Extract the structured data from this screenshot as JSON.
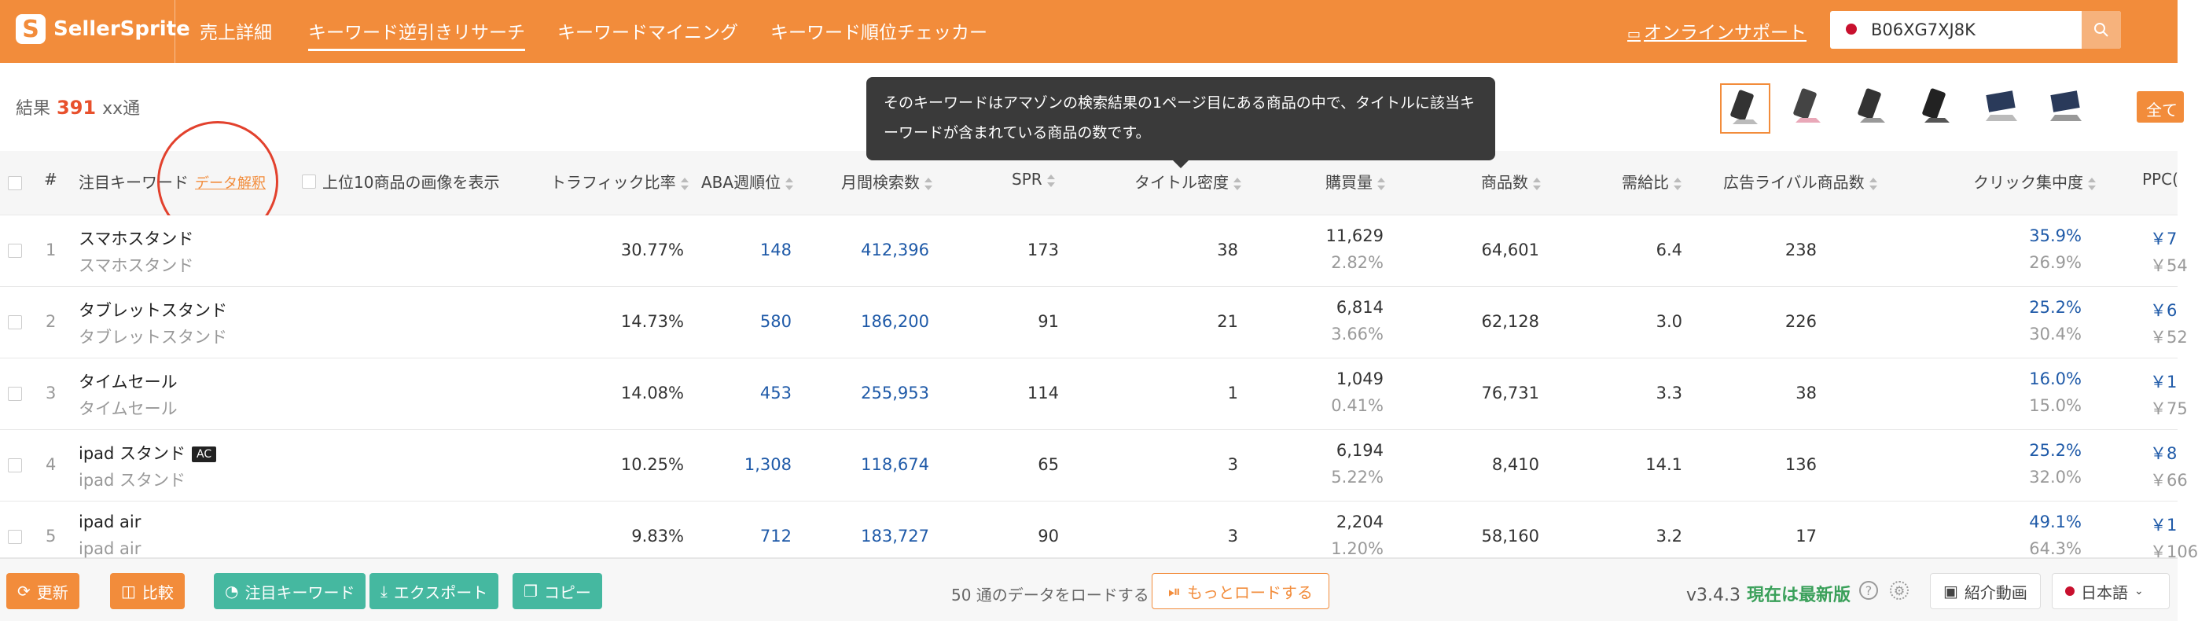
{
  "app": {
    "logo_text": "SellerSprite",
    "logo_letter": "S"
  },
  "nav": [
    {
      "label": "売上詳細"
    },
    {
      "label": "キーワード逆引きリサーチ"
    },
    {
      "label": "キーワードマイニング"
    },
    {
      "label": "キーワード順位チェッカー"
    }
  ],
  "support": {
    "label": "オンラインサポート"
  },
  "search": {
    "value": "B06XG7XJ8K"
  },
  "results": {
    "prefix": "結果",
    "count": "391",
    "suffix": "xx通"
  },
  "tooltip": {
    "text": "そのキーワードはアマゾンの検索結果の1ページ目にある商品の中で、タイトルに該当キーワードが含まれている商品の数です。"
  },
  "all_button": {
    "label": "全て"
  },
  "columns": {
    "hash": "#",
    "keyword": "注目キーワード",
    "data_link": "データ解釈",
    "show_images": "上位10商品の画像を表示",
    "traffic": "トラフィック比率",
    "aba": "ABA週順位",
    "monthly": "月間検索数",
    "spr": "SPR",
    "title_density": "タイトル密度",
    "purchases": "購買量",
    "products": "商品数",
    "supply_demand": "需給比",
    "ad_rivals": "広告ライバル商品数",
    "click_conc": "クリック集中度",
    "ppc": "PPC("
  },
  "rows": [
    {
      "n": "1",
      "kw": "スマホスタンド",
      "kw_sub": "スマホスタンド",
      "ac": "",
      "traffic": "30.77%",
      "aba": "148",
      "monthly": "412,396",
      "spr": "173",
      "title": "38",
      "purchase": "11,629",
      "purchase_rate": "2.82%",
      "products": "64,601",
      "ratio": "6.4",
      "ads": "238",
      "click": "35.9%",
      "click2": "26.9%",
      "ppc": "￥7",
      "ppc2": "￥54"
    },
    {
      "n": "2",
      "kw": "タブレットスタンド",
      "kw_sub": "タブレットスタンド",
      "ac": "",
      "traffic": "14.73%",
      "aba": "580",
      "monthly": "186,200",
      "spr": "91",
      "title": "21",
      "purchase": "6,814",
      "purchase_rate": "3.66%",
      "products": "62,128",
      "ratio": "3.0",
      "ads": "226",
      "click": "25.2%",
      "click2": "30.4%",
      "ppc": "￥6",
      "ppc2": "￥52"
    },
    {
      "n": "3",
      "kw": "タイムセール",
      "kw_sub": "タイムセール",
      "ac": "",
      "traffic": "14.08%",
      "aba": "453",
      "monthly": "255,953",
      "spr": "114",
      "title": "1",
      "purchase": "1,049",
      "purchase_rate": "0.41%",
      "products": "76,731",
      "ratio": "3.3",
      "ads": "38",
      "click": "16.0%",
      "click2": "15.0%",
      "ppc": "￥1",
      "ppc2": "￥75"
    },
    {
      "n": "4",
      "kw": "ipad スタンド",
      "kw_sub": "ipad スタンド",
      "ac": "AC",
      "traffic": "10.25%",
      "aba": "1,308",
      "monthly": "118,674",
      "spr": "65",
      "title": "3",
      "purchase": "6,194",
      "purchase_rate": "5.22%",
      "products": "8,410",
      "ratio": "14.1",
      "ads": "136",
      "click": "25.2%",
      "click2": "32.0%",
      "ppc": "￥8",
      "ppc2": "￥66"
    },
    {
      "n": "5",
      "kw": "ipad air",
      "kw_sub": "ipad air",
      "ac": "",
      "traffic": "9.83%",
      "aba": "712",
      "monthly": "183,727",
      "spr": "90",
      "title": "3",
      "purchase": "2,204",
      "purchase_rate": "1.20%",
      "products": "58,160",
      "ratio": "3.2",
      "ads": "17",
      "click": "49.1%",
      "click2": "64.3%",
      "ppc": "￥1",
      "ppc2": "￥106"
    }
  ],
  "footer": {
    "refresh": "更新",
    "compare": "比較",
    "focus_kw": "注目キーワード",
    "export": "エクスポート",
    "copy": "コピー",
    "load_text": "50 通のデータをロードする",
    "load_more": "もっとロードする",
    "version": "v3.4.3",
    "latest": "現在は最新版",
    "intro": "紹介動画",
    "lang": "日本語"
  },
  "colors": {
    "brand": "#f28c3b",
    "link_blue": "#1f5aa8",
    "highlight_red": "#e2412d",
    "teal": "#45b8a0"
  }
}
